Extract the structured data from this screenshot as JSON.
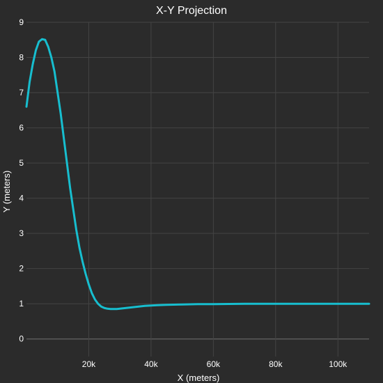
{
  "chart_data": {
    "type": "line",
    "title": "X-Y Projection",
    "xlabel": "X (meters)",
    "ylabel": "Y (meters)",
    "xlim": [
      0,
      110000
    ],
    "ylim": [
      -0.5,
      9
    ],
    "grid": true,
    "x_ticks": [
      {
        "value": 20000,
        "label": "20k"
      },
      {
        "value": 40000,
        "label": "40k"
      },
      {
        "value": 60000,
        "label": "60k"
      },
      {
        "value": 80000,
        "label": "80k"
      },
      {
        "value": 100000,
        "label": "100k"
      }
    ],
    "y_ticks": [
      {
        "value": 0,
        "label": "0"
      },
      {
        "value": 1,
        "label": "1"
      },
      {
        "value": 2,
        "label": "2"
      },
      {
        "value": 3,
        "label": "3"
      },
      {
        "value": 4,
        "label": "4"
      },
      {
        "value": 5,
        "label": "5"
      },
      {
        "value": 6,
        "label": "6"
      },
      {
        "value": 7,
        "label": "7"
      },
      {
        "value": 8,
        "label": "8"
      },
      {
        "value": 9,
        "label": "9"
      }
    ],
    "series": [
      {
        "color": "#17becf",
        "x": [
          0,
          1000,
          2000,
          3000,
          4000,
          5000,
          6000,
          7000,
          8000,
          9000,
          10000,
          11000,
          12000,
          13000,
          14000,
          15000,
          16000,
          17000,
          18000,
          19000,
          20000,
          21000,
          22000,
          23000,
          24000,
          25000,
          26000,
          27000,
          28000,
          29000,
          30000,
          32000,
          34000,
          36000,
          38000,
          40000,
          42000,
          45000,
          50000,
          55000,
          60000,
          70000,
          80000,
          90000,
          100000,
          110000
        ],
        "y": [
          6.6,
          7.3,
          7.8,
          8.2,
          8.45,
          8.52,
          8.5,
          8.3,
          8.0,
          7.6,
          7.0,
          6.4,
          5.7,
          5.0,
          4.3,
          3.7,
          3.1,
          2.6,
          2.2,
          1.85,
          1.55,
          1.3,
          1.12,
          1.0,
          0.92,
          0.88,
          0.86,
          0.85,
          0.85,
          0.85,
          0.86,
          0.88,
          0.9,
          0.92,
          0.94,
          0.95,
          0.96,
          0.97,
          0.98,
          0.99,
          0.99,
          1.0,
          1.0,
          1.0,
          1.0,
          1.0
        ]
      }
    ]
  }
}
